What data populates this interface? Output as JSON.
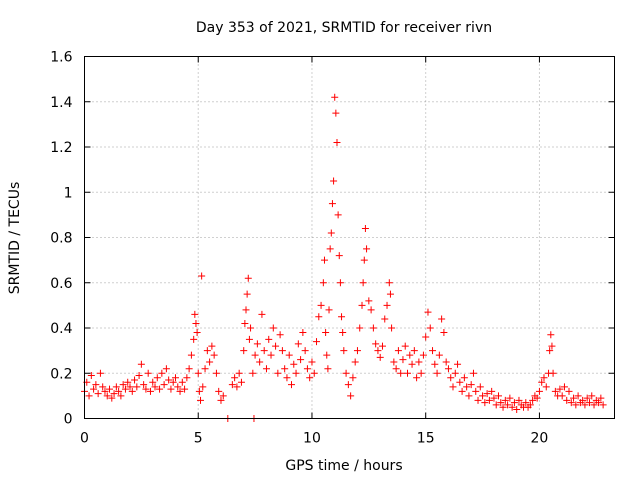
{
  "chart_data": {
    "type": "scatter",
    "title": "Day 353 of 2021, SRMTID for receiver rivn",
    "xlabel": "GPS time / hours",
    "ylabel": "SRMTID / TECUs",
    "xlim": [
      0,
      23.3
    ],
    "ylim": [
      0,
      1.6
    ],
    "xticks": [
      0,
      5,
      10,
      15,
      20
    ],
    "xtick_labels": [
      "0",
      "5",
      "10",
      "15",
      "20"
    ],
    "yticks": [
      0,
      0.2,
      0.4,
      0.6,
      0.8,
      1,
      1.2,
      1.4,
      1.6
    ],
    "ytick_labels": [
      "0",
      "0.2",
      "0.4",
      "0.6",
      "0.8",
      "1",
      "1.2",
      "1.4",
      "1.6"
    ],
    "grid": true,
    "marker": "+",
    "marker_color": "#ff0000",
    "series": [
      {
        "name": "SRMTID",
        "points": [
          [
            0.0,
            0.12
          ],
          [
            0.1,
            0.16
          ],
          [
            0.2,
            0.1
          ],
          [
            0.3,
            0.19
          ],
          [
            0.4,
            0.13
          ],
          [
            0.5,
            0.15
          ],
          [
            0.6,
            0.11
          ],
          [
            0.7,
            0.2
          ],
          [
            0.8,
            0.14
          ],
          [
            0.9,
            0.12
          ],
          [
            1.0,
            0.1
          ],
          [
            1.1,
            0.13
          ],
          [
            1.2,
            0.09
          ],
          [
            1.3,
            0.11
          ],
          [
            1.4,
            0.14
          ],
          [
            1.5,
            0.12
          ],
          [
            1.6,
            0.1
          ],
          [
            1.7,
            0.15
          ],
          [
            1.8,
            0.13
          ],
          [
            1.9,
            0.16
          ],
          [
            2.0,
            0.14
          ],
          [
            2.1,
            0.12
          ],
          [
            2.2,
            0.17
          ],
          [
            2.3,
            0.14
          ],
          [
            2.4,
            0.19
          ],
          [
            2.5,
            0.24
          ],
          [
            2.6,
            0.15
          ],
          [
            2.7,
            0.13
          ],
          [
            2.8,
            0.2
          ],
          [
            2.9,
            0.12
          ],
          [
            3.0,
            0.16
          ],
          [
            3.1,
            0.14
          ],
          [
            3.2,
            0.18
          ],
          [
            3.3,
            0.13
          ],
          [
            3.4,
            0.2
          ],
          [
            3.5,
            0.15
          ],
          [
            3.6,
            0.22
          ],
          [
            3.7,
            0.17
          ],
          [
            3.8,
            0.13
          ],
          [
            3.9,
            0.16
          ],
          [
            4.0,
            0.18
          ],
          [
            4.1,
            0.14
          ],
          [
            4.2,
            0.12
          ],
          [
            4.3,
            0.16
          ],
          [
            4.4,
            0.13
          ],
          [
            4.5,
            0.18
          ],
          [
            4.6,
            0.22
          ],
          [
            4.7,
            0.28
          ],
          [
            4.8,
            0.35
          ],
          [
            4.85,
            0.46
          ],
          [
            4.9,
            0.42
          ],
          [
            4.95,
            0.38
          ],
          [
            5.0,
            0.2
          ],
          [
            5.05,
            0.12
          ],
          [
            5.1,
            0.08
          ],
          [
            5.15,
            0.63
          ],
          [
            5.2,
            0.14
          ],
          [
            5.3,
            0.22
          ],
          [
            5.4,
            0.3
          ],
          [
            5.5,
            0.25
          ],
          [
            5.6,
            0.32
          ],
          [
            5.7,
            0.28
          ],
          [
            5.8,
            0.2
          ],
          [
            5.9,
            0.12
          ],
          [
            6.0,
            0.08
          ],
          [
            6.1,
            0.1
          ],
          [
            6.3,
            0.0
          ],
          [
            6.5,
            0.15
          ],
          [
            6.6,
            0.18
          ],
          [
            6.7,
            0.14
          ],
          [
            6.8,
            0.2
          ],
          [
            6.9,
            0.16
          ],
          [
            7.0,
            0.3
          ],
          [
            7.05,
            0.42
          ],
          [
            7.1,
            0.48
          ],
          [
            7.15,
            0.55
          ],
          [
            7.2,
            0.62
          ],
          [
            7.25,
            0.35
          ],
          [
            7.3,
            0.4
          ],
          [
            7.4,
            0.2
          ],
          [
            7.45,
            0.0
          ],
          [
            7.5,
            0.28
          ],
          [
            7.6,
            0.33
          ],
          [
            7.7,
            0.25
          ],
          [
            7.8,
            0.46
          ],
          [
            7.9,
            0.3
          ],
          [
            8.0,
            0.22
          ],
          [
            8.1,
            0.35
          ],
          [
            8.2,
            0.28
          ],
          [
            8.3,
            0.4
          ],
          [
            8.4,
            0.32
          ],
          [
            8.5,
            0.2
          ],
          [
            8.6,
            0.37
          ],
          [
            8.7,
            0.3
          ],
          [
            8.8,
            0.22
          ],
          [
            8.9,
            0.18
          ],
          [
            9.0,
            0.28
          ],
          [
            9.1,
            0.15
          ],
          [
            9.2,
            0.24
          ],
          [
            9.3,
            0.2
          ],
          [
            9.4,
            0.33
          ],
          [
            9.5,
            0.26
          ],
          [
            9.6,
            0.38
          ],
          [
            9.7,
            0.3
          ],
          [
            9.8,
            0.22
          ],
          [
            9.9,
            0.18
          ],
          [
            10.0,
            0.25
          ],
          [
            10.1,
            0.2
          ],
          [
            10.2,
            0.34
          ],
          [
            10.3,
            0.45
          ],
          [
            10.4,
            0.5
          ],
          [
            10.5,
            0.6
          ],
          [
            10.55,
            0.7
          ],
          [
            10.6,
            0.38
          ],
          [
            10.65,
            0.28
          ],
          [
            10.7,
            0.22
          ],
          [
            10.75,
            0.48
          ],
          [
            10.8,
            0.75
          ],
          [
            10.85,
            0.82
          ],
          [
            10.9,
            0.95
          ],
          [
            10.95,
            1.05
          ],
          [
            11.0,
            1.42
          ],
          [
            11.05,
            1.35
          ],
          [
            11.1,
            1.22
          ],
          [
            11.15,
            0.9
          ],
          [
            11.2,
            0.72
          ],
          [
            11.25,
            0.6
          ],
          [
            11.3,
            0.45
          ],
          [
            11.35,
            0.38
          ],
          [
            11.4,
            0.3
          ],
          [
            11.5,
            0.2
          ],
          [
            11.6,
            0.15
          ],
          [
            11.7,
            0.1
          ],
          [
            11.8,
            0.18
          ],
          [
            11.9,
            0.25
          ],
          [
            12.0,
            0.3
          ],
          [
            12.1,
            0.4
          ],
          [
            12.2,
            0.5
          ],
          [
            12.25,
            0.6
          ],
          [
            12.3,
            0.7
          ],
          [
            12.35,
            0.84
          ],
          [
            12.4,
            0.75
          ],
          [
            12.5,
            0.52
          ],
          [
            12.6,
            0.48
          ],
          [
            12.7,
            0.4
          ],
          [
            12.8,
            0.33
          ],
          [
            12.9,
            0.3
          ],
          [
            13.0,
            0.27
          ],
          [
            13.1,
            0.32
          ],
          [
            13.2,
            0.44
          ],
          [
            13.3,
            0.5
          ],
          [
            13.4,
            0.6
          ],
          [
            13.45,
            0.55
          ],
          [
            13.5,
            0.4
          ],
          [
            13.6,
            0.25
          ],
          [
            13.7,
            0.22
          ],
          [
            13.8,
            0.3
          ],
          [
            13.9,
            0.2
          ],
          [
            14.0,
            0.26
          ],
          [
            14.1,
            0.32
          ],
          [
            14.2,
            0.2
          ],
          [
            14.3,
            0.28
          ],
          [
            14.4,
            0.24
          ],
          [
            14.5,
            0.3
          ],
          [
            14.6,
            0.18
          ],
          [
            14.7,
            0.25
          ],
          [
            14.8,
            0.2
          ],
          [
            14.9,
            0.28
          ],
          [
            15.0,
            0.36
          ],
          [
            15.1,
            0.47
          ],
          [
            15.2,
            0.4
          ],
          [
            15.3,
            0.3
          ],
          [
            15.4,
            0.24
          ],
          [
            15.5,
            0.2
          ],
          [
            15.6,
            0.28
          ],
          [
            15.7,
            0.44
          ],
          [
            15.8,
            0.38
          ],
          [
            15.9,
            0.25
          ],
          [
            16.0,
            0.22
          ],
          [
            16.1,
            0.18
          ],
          [
            16.2,
            0.14
          ],
          [
            16.3,
            0.2
          ],
          [
            16.4,
            0.24
          ],
          [
            16.5,
            0.16
          ],
          [
            16.6,
            0.12
          ],
          [
            16.7,
            0.18
          ],
          [
            16.8,
            0.14
          ],
          [
            16.9,
            0.1
          ],
          [
            17.0,
            0.15
          ],
          [
            17.1,
            0.2
          ],
          [
            17.2,
            0.12
          ],
          [
            17.3,
            0.08
          ],
          [
            17.4,
            0.14
          ],
          [
            17.5,
            0.1
          ],
          [
            17.6,
            0.07
          ],
          [
            17.7,
            0.11
          ],
          [
            17.8,
            0.08
          ],
          [
            17.9,
            0.12
          ],
          [
            18.0,
            0.09
          ],
          [
            18.1,
            0.06
          ],
          [
            18.2,
            0.1
          ],
          [
            18.3,
            0.07
          ],
          [
            18.4,
            0.05
          ],
          [
            18.5,
            0.08
          ],
          [
            18.6,
            0.06
          ],
          [
            18.7,
            0.09
          ],
          [
            18.8,
            0.05
          ],
          [
            18.9,
            0.07
          ],
          [
            19.0,
            0.04
          ],
          [
            19.1,
            0.08
          ],
          [
            19.2,
            0.06
          ],
          [
            19.3,
            0.05
          ],
          [
            19.4,
            0.07
          ],
          [
            19.5,
            0.05
          ],
          [
            19.6,
            0.06
          ],
          [
            19.7,
            0.08
          ],
          [
            19.8,
            0.1
          ],
          [
            19.9,
            0.09
          ],
          [
            20.0,
            0.12
          ],
          [
            20.1,
            0.16
          ],
          [
            20.2,
            0.18
          ],
          [
            20.3,
            0.14
          ],
          [
            20.4,
            0.2
          ],
          [
            20.45,
            0.3
          ],
          [
            20.5,
            0.37
          ],
          [
            20.55,
            0.32
          ],
          [
            20.6,
            0.2
          ],
          [
            20.7,
            0.12
          ],
          [
            20.8,
            0.1
          ],
          [
            20.9,
            0.13
          ],
          [
            21.0,
            0.1
          ],
          [
            21.1,
            0.14
          ],
          [
            21.2,
            0.08
          ],
          [
            21.3,
            0.12
          ],
          [
            21.4,
            0.07
          ],
          [
            21.5,
            0.09
          ],
          [
            21.6,
            0.06
          ],
          [
            21.7,
            0.1
          ],
          [
            21.8,
            0.07
          ],
          [
            21.9,
            0.08
          ],
          [
            22.0,
            0.06
          ],
          [
            22.1,
            0.09
          ],
          [
            22.2,
            0.07
          ],
          [
            22.3,
            0.1
          ],
          [
            22.4,
            0.06
          ],
          [
            22.5,
            0.08
          ],
          [
            22.6,
            0.07
          ],
          [
            22.7,
            0.09
          ],
          [
            22.8,
            0.06
          ]
        ]
      }
    ]
  }
}
